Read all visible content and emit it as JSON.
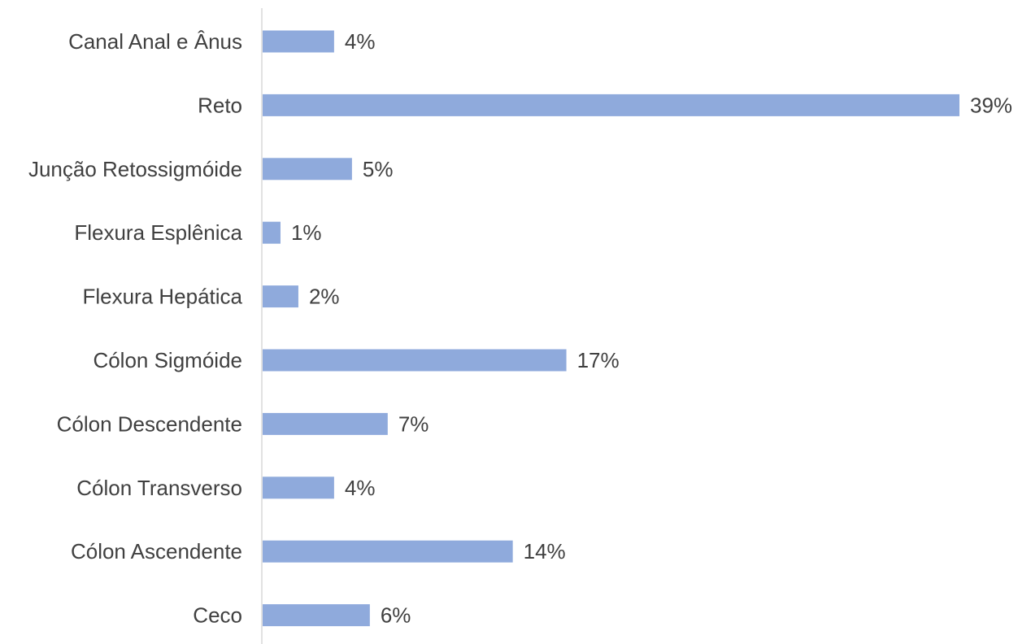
{
  "chart_data": {
    "type": "bar",
    "orientation": "horizontal",
    "categories": [
      "Canal Anal e Ânus",
      "Reto",
      "Junção Retossigmóide",
      "Flexura Esplênica",
      "Flexura Hepática",
      "Cólon Sigmóide",
      "Cólon Descendente",
      "Cólon Transverso",
      "Cólon Ascendente",
      "Ceco"
    ],
    "values": [
      4,
      39,
      5,
      1,
      2,
      17,
      7,
      4,
      14,
      6
    ],
    "value_labels": [
      "4%",
      "39%",
      "5%",
      "1%",
      "2%",
      "17%",
      "7%",
      "4%",
      "14%",
      "6%"
    ],
    "value_unit": "%",
    "title": "",
    "xlabel": "",
    "ylabel": "",
    "xlim": [
      0,
      39
    ],
    "grid": false,
    "legend": "none",
    "colors": {
      "bar": "#8faadc",
      "axis": "#d9d9d9",
      "text": "#404040"
    }
  }
}
